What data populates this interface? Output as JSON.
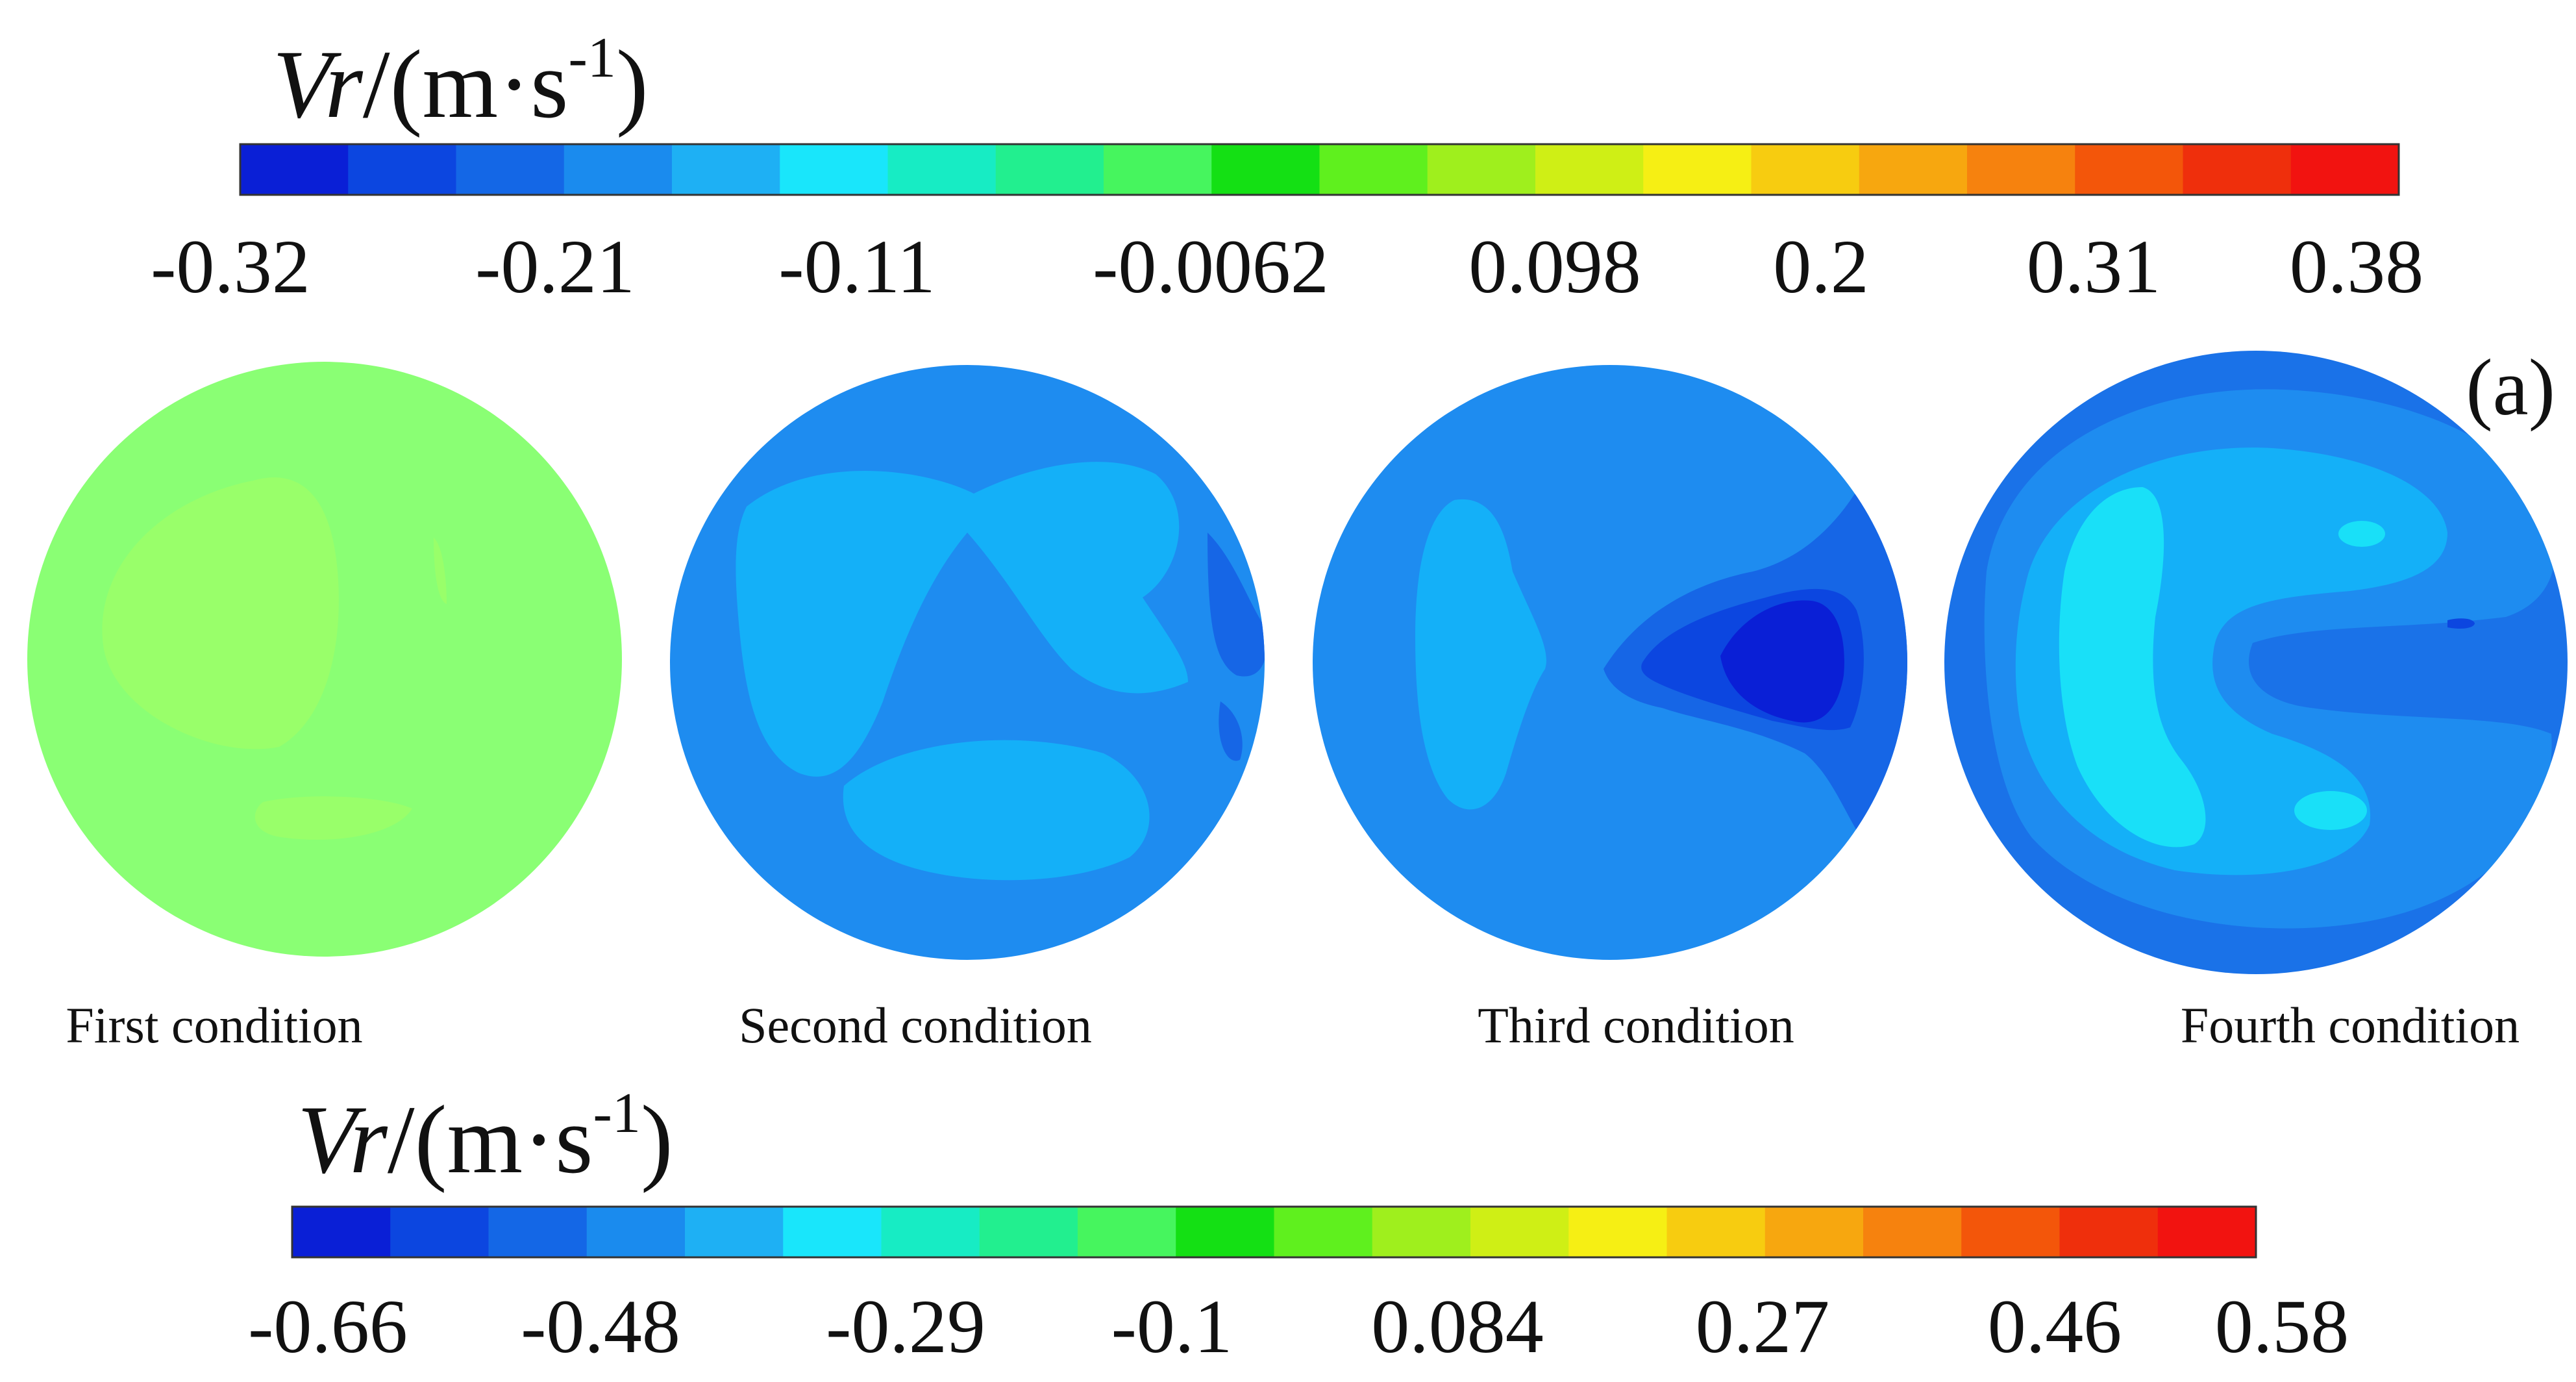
{
  "chart_data": {
    "type": "heatmap",
    "figure_label": "(a)",
    "colormap": [
      "#0a1fd6",
      "#0c46e0",
      "#1467e6",
      "#1a8bee",
      "#1eb0f4",
      "#19e6fb",
      "#17ecc4",
      "#22ef8f",
      "#46f55e",
      "#14e014",
      "#5ff01e",
      "#9fef1d",
      "#cfef15",
      "#f6ef14",
      "#f7cc10",
      "#f7a70f",
      "#f6820e",
      "#f3560a",
      "#ef2f0c",
      "#f21310"
    ],
    "colorbars": [
      {
        "title_main": "Vr",
        "title_units": "/(m·s",
        "title_exp": "-1",
        "title_close": ")",
        "range": [
          -0.32,
          0.38
        ],
        "ticks": [
          "-0.32",
          "-0.21",
          "-0.11",
          "-0.0062",
          "0.098",
          "0.2",
          "0.31",
          "0.38"
        ]
      },
      {
        "title_main": "Vr",
        "title_units": "/(m·s",
        "title_exp": "-1",
        "title_close": ")",
        "range": [
          -0.66,
          0.58
        ],
        "ticks": [
          "-0.66",
          "-0.48",
          "-0.29",
          "-0.1",
          "0.084",
          "0.27",
          "0.46",
          "0.58"
        ]
      }
    ],
    "panels": [
      {
        "caption": "First condition",
        "base_level": -0.011,
        "colorbar": 0
      },
      {
        "caption": "Second condition",
        "base_level": -0.21,
        "colorbar": 0
      },
      {
        "caption": "Third condition",
        "base_level": -0.21,
        "colorbar": 0
      },
      {
        "caption": "Fourth condition",
        "base_level": -0.24,
        "colorbar": 0
      }
    ]
  }
}
